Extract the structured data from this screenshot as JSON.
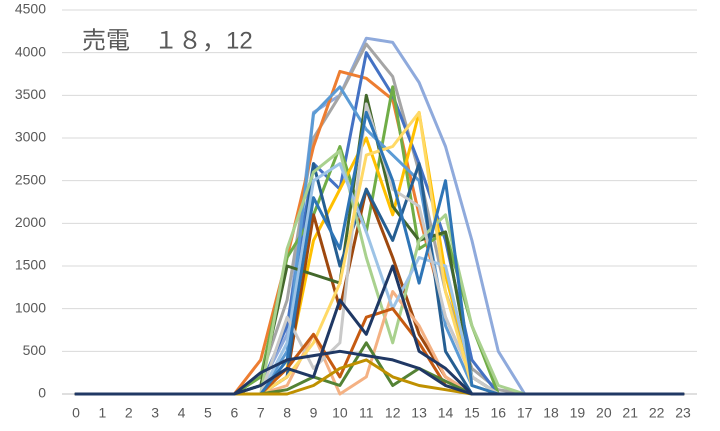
{
  "chart_data": {
    "type": "line",
    "title": "売電　１８，12",
    "categories": [
      "0",
      "1",
      "2",
      "3",
      "4",
      "5",
      "6",
      "7",
      "8",
      "9",
      "10",
      "11",
      "12",
      "13",
      "14",
      "15",
      "16",
      "17",
      "18",
      "19",
      "20",
      "21",
      "22",
      "23"
    ],
    "ylim": [
      0,
      4500
    ],
    "yticks": [
      0,
      500,
      1000,
      1500,
      2000,
      2500,
      3000,
      3500,
      4000,
      4500
    ],
    "grid": true,
    "series": [
      {
        "color": "#8faadc",
        "values": [
          0,
          0,
          0,
          0,
          0,
          0,
          0,
          100,
          700,
          3300,
          3500,
          4170,
          4120,
          3650,
          2900,
          1800,
          500,
          0,
          0,
          0,
          0,
          0,
          0,
          0
        ]
      },
      {
        "color": "#a5a5a5",
        "values": [
          0,
          0,
          0,
          0,
          0,
          0,
          0,
          200,
          1100,
          3000,
          3500,
          4100,
          3720,
          2600,
          1200,
          300,
          50,
          0,
          0,
          0,
          0,
          0,
          0,
          0
        ]
      },
      {
        "color": "#ed7d31",
        "values": [
          0,
          0,
          0,
          0,
          0,
          0,
          0,
          400,
          1600,
          2900,
          3780,
          3700,
          3450,
          2100,
          900,
          200,
          0,
          0,
          0,
          0,
          0,
          0,
          0,
          0
        ]
      },
      {
        "color": "#4472c4",
        "values": [
          0,
          0,
          0,
          0,
          0,
          0,
          0,
          100,
          800,
          2700,
          2400,
          4000,
          3500,
          2700,
          1800,
          400,
          0,
          0,
          0,
          0,
          0,
          0,
          0,
          0
        ]
      },
      {
        "color": "#70ad47",
        "values": [
          0,
          0,
          0,
          0,
          0,
          0,
          0,
          200,
          1600,
          2100,
          2900,
          1900,
          3600,
          1700,
          1900,
          800,
          0,
          0,
          0,
          0,
          0,
          0,
          0,
          0
        ]
      },
      {
        "color": "#ffc000",
        "values": [
          0,
          0,
          0,
          0,
          0,
          0,
          0,
          0,
          300,
          1800,
          2400,
          3000,
          2100,
          3300,
          1400,
          200,
          0,
          0,
          0,
          0,
          0,
          0,
          0,
          0
        ]
      },
      {
        "color": "#5b9bd5",
        "values": [
          0,
          0,
          0,
          0,
          0,
          0,
          0,
          0,
          500,
          3280,
          3600,
          3100,
          2800,
          2500,
          800,
          100,
          0,
          0,
          0,
          0,
          0,
          0,
          0,
          0
        ]
      },
      {
        "color": "#9e480e",
        "values": [
          0,
          0,
          0,
          0,
          0,
          0,
          0,
          0,
          200,
          2100,
          1000,
          2400,
          1600,
          700,
          200,
          0,
          0,
          0,
          0,
          0,
          0,
          0,
          0,
          0
        ]
      },
      {
        "color": "#43682b",
        "values": [
          0,
          0,
          0,
          0,
          0,
          0,
          0,
          100,
          1500,
          1400,
          1300,
          3500,
          2200,
          1800,
          1900,
          200,
          0,
          0,
          0,
          0,
          0,
          0,
          0,
          0
        ]
      },
      {
        "color": "#255e91",
        "values": [
          0,
          0,
          0,
          0,
          0,
          0,
          0,
          0,
          200,
          2700,
          1500,
          2400,
          1800,
          2700,
          500,
          0,
          0,
          0,
          0,
          0,
          0,
          0,
          0,
          0
        ]
      },
      {
        "color": "#a9d18e",
        "values": [
          0,
          0,
          0,
          0,
          0,
          0,
          0,
          0,
          1700,
          2600,
          2850,
          1600,
          600,
          1800,
          2100,
          800,
          100,
          0,
          0,
          0,
          0,
          0,
          0,
          0
        ]
      },
      {
        "color": "#f4b183",
        "values": [
          0,
          0,
          0,
          0,
          0,
          0,
          0,
          0,
          100,
          700,
          0,
          200,
          1200,
          800,
          200,
          0,
          0,
          0,
          0,
          0,
          0,
          0,
          0,
          0
        ]
      },
      {
        "color": "#9dc3e6",
        "values": [
          0,
          0,
          0,
          0,
          0,
          0,
          0,
          0,
          600,
          2500,
          2700,
          1900,
          1000,
          1600,
          1500,
          200,
          0,
          0,
          0,
          0,
          0,
          0,
          0,
          0
        ]
      },
      {
        "color": "#c9c9c9",
        "values": [
          0,
          0,
          0,
          0,
          0,
          0,
          0,
          0,
          900,
          300,
          600,
          3400,
          2400,
          2200,
          900,
          200,
          0,
          0,
          0,
          0,
          0,
          0,
          0,
          0
        ]
      },
      {
        "color": "#ffd966",
        "values": [
          0,
          0,
          0,
          0,
          0,
          0,
          0,
          0,
          200,
          600,
          1300,
          2800,
          2900,
          3300,
          1200,
          100,
          0,
          0,
          0,
          0,
          0,
          0,
          0,
          0
        ]
      },
      {
        "color": "#c55a11",
        "values": [
          0,
          0,
          0,
          0,
          0,
          0,
          0,
          0,
          300,
          700,
          200,
          900,
          1000,
          600,
          100,
          0,
          0,
          0,
          0,
          0,
          0,
          0,
          0,
          0
        ]
      },
      {
        "color": "#2e75b6",
        "values": [
          0,
          0,
          0,
          0,
          0,
          0,
          0,
          0,
          400,
          2300,
          1700,
          3300,
          2500,
          1300,
          2500,
          100,
          0,
          0,
          0,
          0,
          0,
          0,
          0,
          0
        ]
      },
      {
        "color": "#548235",
        "values": [
          0,
          0,
          0,
          0,
          0,
          0,
          0,
          0,
          50,
          200,
          100,
          600,
          100,
          300,
          150,
          0,
          0,
          0,
          0,
          0,
          0,
          0,
          0,
          0
        ]
      },
      {
        "color": "#bf9000",
        "values": [
          0,
          0,
          0,
          0,
          0,
          0,
          0,
          0,
          0,
          100,
          300,
          400,
          200,
          100,
          50,
          0,
          0,
          0,
          0,
          0,
          0,
          0,
          0,
          0
        ]
      },
      {
        "color": "#1f3864",
        "values": [
          0,
          0,
          0,
          0,
          0,
          0,
          0,
          100,
          300,
          200,
          1100,
          700,
          1500,
          500,
          300,
          0,
          0,
          0,
          0,
          0,
          0,
          0,
          0,
          0
        ]
      },
      {
        "color": "#203864",
        "values": [
          0,
          0,
          0,
          0,
          0,
          0,
          0,
          250,
          400,
          450,
          500,
          450,
          400,
          300,
          100,
          0,
          0,
          0,
          0,
          0,
          0,
          0,
          0,
          0
        ]
      }
    ]
  }
}
